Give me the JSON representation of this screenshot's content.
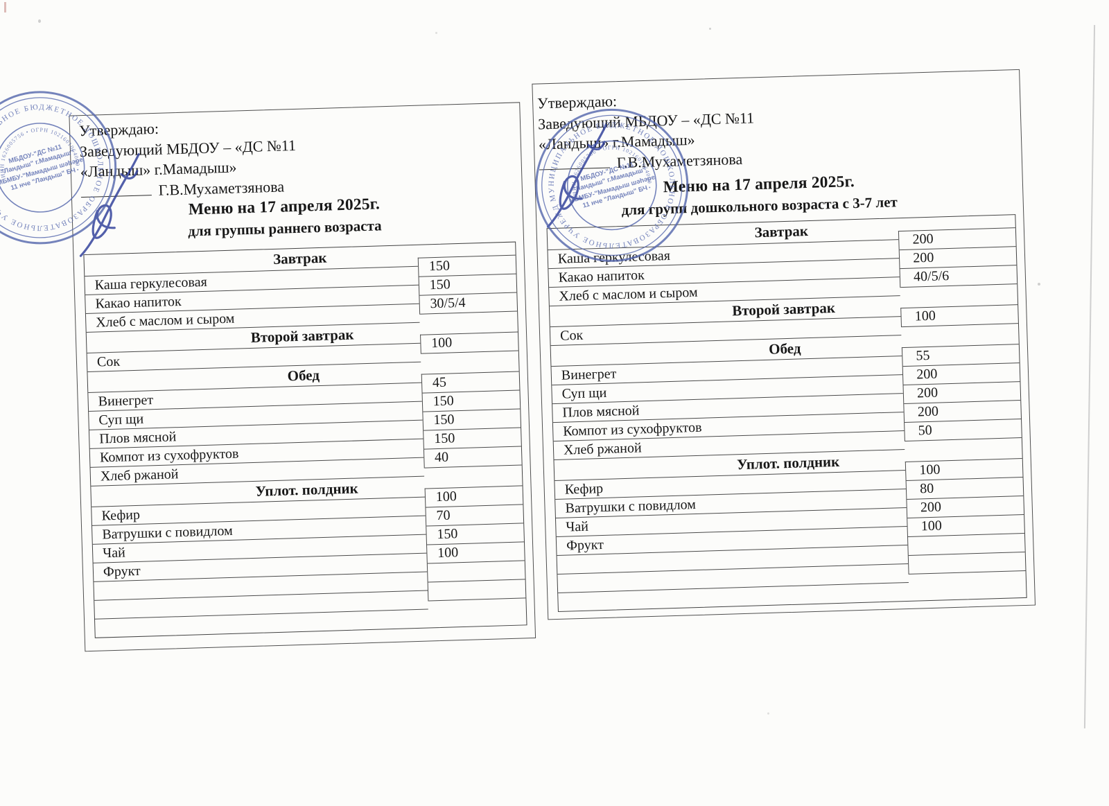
{
  "document": {
    "stamp": {
      "ring_text": "МУНИЦИПАЛЬНОЕ БЮДЖЕТНОЕ ДОШКОЛЬНОЕ ОБРАЗОВАТЕЛЬНОЕ УЧРЕЖДЕНИЕ • РЕСПУБЛИКИ ТАТАРСТАН •",
      "inner_ring_text": "ИНН 1626005756 • ОГРН 1021601064000 •",
      "center_lines": [
        "МБДОУ-\"ДС №11",
        "\"Ландыш\" г.Мамадыш\"",
        "МБМБУ-\"Мамадыш шәһәре",
        "11 нче \"Ландыш\" БЧ"
      ],
      "ink_color": "#5365ac"
    }
  },
  "menus": [
    {
      "approval_lines": [
        "Утверждаю:",
        "Заведующий МБДОУ – «ДС №11",
        "«Ландыш» г.Мамадыш»"
      ],
      "signer": "Г.В.Мухаметзянова",
      "title": "Меню на 17 апреля 2025г.",
      "subtitle": "для группы раннего возраста",
      "sections": [
        {
          "title": "Завтрак",
          "items": [
            {
              "name": "Каша геркулесовая",
              "qty": "150"
            },
            {
              "name": "Какао напиток",
              "qty": "150"
            },
            {
              "name": "Хлеб с маслом и сыром",
              "qty": "30/5/4"
            }
          ]
        },
        {
          "title": "Второй завтрак",
          "items": [
            {
              "name": "Сок",
              "qty": "100"
            }
          ]
        },
        {
          "title": "Обед",
          "items": [
            {
              "name": "Винегрет",
              "qty": "45"
            },
            {
              "name": "Суп щи",
              "qty": "150"
            },
            {
              "name": "Плов мясной",
              "qty": "150"
            },
            {
              "name": "Компот из сухофруктов",
              "qty": "150"
            },
            {
              "name": "Хлеб ржаной",
              "qty": "40"
            }
          ]
        },
        {
          "title": "Уплот. полдник",
          "items": [
            {
              "name": "Кефир",
              "qty": "100"
            },
            {
              "name": "Ватрушки с повидлом",
              "qty": "70"
            },
            {
              "name": "Чай",
              "qty": "150"
            },
            {
              "name": "Фрукт",
              "qty": "100"
            }
          ],
          "empty_rows": 3,
          "empty_vals": 2
        }
      ]
    },
    {
      "approval_lines": [
        "Утверждаю:",
        "Заведующий МБДОУ – «ДС №11",
        "«Ландыш» г.Мамадыш»"
      ],
      "signer": "Г.В.Мухаметзянова",
      "title": "Меню на 17 апреля 2025г.",
      "subtitle": "для групп дошкольного возраста с 3-7 лет",
      "sections": [
        {
          "title": "Завтрак",
          "items": [
            {
              "name": "Каша геркулесовая",
              "qty": "200"
            },
            {
              "name": "Какао напиток",
              "qty": "200"
            },
            {
              "name": "Хлеб с маслом и сыром",
              "qty": "40/5/6"
            }
          ]
        },
        {
          "title": "Второй завтрак",
          "items": [
            {
              "name": "Сок",
              "qty": "100"
            }
          ]
        },
        {
          "title": "Обед",
          "items": [
            {
              "name": "Винегрет",
              "qty": "55"
            },
            {
              "name": "Суп щи",
              "qty": "200"
            },
            {
              "name": "Плов мясной",
              "qty": "200"
            },
            {
              "name": "Компот из сухофруктов",
              "qty": "200"
            },
            {
              "name": "Хлеб ржаной",
              "qty": "50"
            }
          ]
        },
        {
          "title": "Уплот. полдник",
          "items": [
            {
              "name": "Кефир",
              "qty": "100"
            },
            {
              "name": "Ватрушки с повидлом",
              "qty": "80"
            },
            {
              "name": "Чай",
              "qty": "200"
            },
            {
              "name": "Фрукт",
              "qty": "100"
            }
          ],
          "empty_rows": 3,
          "empty_vals": 2
        }
      ]
    }
  ]
}
